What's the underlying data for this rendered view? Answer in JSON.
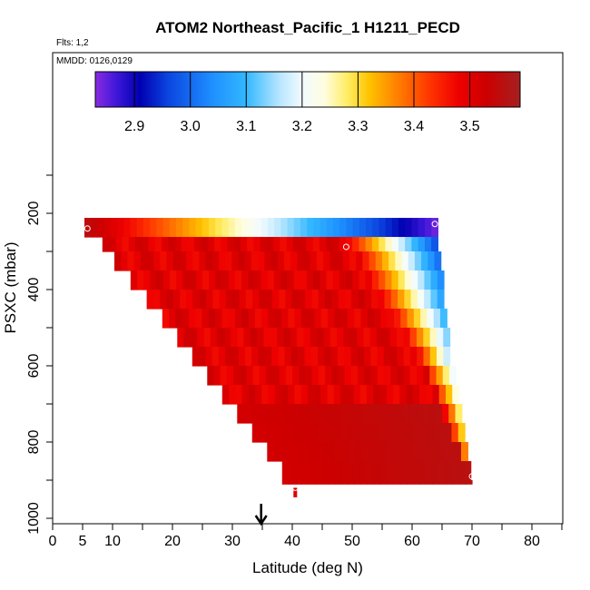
{
  "chart_data": {
    "type": "heatmap",
    "title": "ATOM2 Northeast_Pacific_1 H1211_PECD",
    "notes": [
      "Flts: 1,2",
      "MMDD: 0126,0129"
    ],
    "xlabel": "Latitude (deg N)",
    "ylabel": "PSXC (mbar)",
    "xlim": [
      0,
      85
    ],
    "ylim": [
      1000,
      0
    ],
    "x_ticks": [
      0,
      5,
      10,
      20,
      30,
      40,
      50,
      60,
      70,
      80
    ],
    "y_ticks": [
      200,
      400,
      600,
      800,
      1000
    ],
    "colorbar": {
      "range": [
        2.83,
        3.59
      ],
      "ticks": [
        2.9,
        3.0,
        3.1,
        3.2,
        3.3,
        3.4,
        3.5
      ],
      "tick_labels": [
        "2.9",
        "3.0",
        "3.1",
        "3.2",
        "3.3",
        "3.4",
        "3.5"
      ]
    },
    "rows": [
      {
        "p_top": 212,
        "p_bot": 262,
        "x_start": 5.3,
        "x_end": 64.3,
        "mode": "top"
      },
      {
        "p_top": 262,
        "p_bot": 300,
        "x_start": 8.3,
        "x_end": 64.3,
        "front": 49.5
      },
      {
        "p_top": 300,
        "p_bot": 350,
        "x_start": 10.3,
        "x_end": 64.8,
        "front": 51.5
      },
      {
        "p_top": 350,
        "p_bot": 400,
        "x_start": 13.0,
        "x_end": 65.3,
        "front": 53.0
      },
      {
        "p_top": 400,
        "p_bot": 450,
        "x_start": 15.7,
        "x_end": 65.3,
        "front": 55.0
      },
      {
        "p_top": 450,
        "p_bot": 500,
        "x_start": 18.3,
        "x_end": 65.8,
        "front": 57.0
      },
      {
        "p_top": 500,
        "p_bot": 550,
        "x_start": 20.8,
        "x_end": 66.3,
        "front": 59.0
      },
      {
        "p_top": 550,
        "p_bot": 600,
        "x_start": 23.3,
        "x_end": 66.3,
        "front": 61.0
      },
      {
        "p_top": 600,
        "p_bot": 650,
        "x_start": 25.8,
        "x_end": 67.3,
        "front": 62.5
      },
      {
        "p_top": 650,
        "p_bot": 700,
        "x_start": 28.3,
        "x_end": 67.8,
        "front": 64.0
      },
      {
        "p_top": 700,
        "p_bot": 750,
        "x_start": 30.8,
        "x_end": 68.3,
        "front": 65.5
      },
      {
        "p_top": 750,
        "p_bot": 800,
        "x_start": 33.3,
        "x_end": 68.8,
        "front": 66.5
      },
      {
        "p_top": 800,
        "p_bot": 850,
        "x_start": 35.8,
        "x_end": 69.3,
        "front": 68.0
      },
      {
        "p_top": 850,
        "p_bot": 900,
        "x_start": 38.3,
        "x_end": 69.8,
        "front": 69.5
      },
      {
        "p_top": 900,
        "p_bot": 910,
        "x_start": 38.3,
        "x_end": 70.0,
        "front": 70.0
      }
    ],
    "stem": {
      "x": 40.5,
      "p_top": 920,
      "p_bot": 945
    },
    "markers": [
      {
        "x": 5.8,
        "p": 240
      },
      {
        "x": 63.8,
        "p": 228
      },
      {
        "x": 49.0,
        "p": 288
      },
      {
        "x": 70.0,
        "p": 890
      },
      {
        "x": 40.5,
        "p": 920
      }
    ],
    "arrow": {
      "x": 34.8
    }
  }
}
